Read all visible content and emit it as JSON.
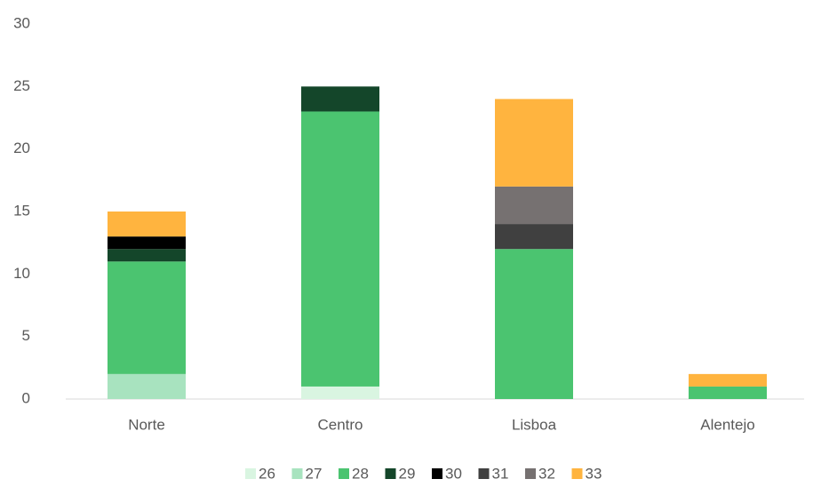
{
  "chart_data": {
    "type": "stacked_bar",
    "categories": [
      "Norte",
      "Centro",
      "Lisboa",
      "Alentejo"
    ],
    "series": [
      {
        "name": "26",
        "color": "#d9f5e1",
        "values": [
          null,
          1,
          null,
          null
        ]
      },
      {
        "name": "27",
        "color": "#a8e3bf",
        "values": [
          2,
          null,
          null,
          null
        ]
      },
      {
        "name": "28",
        "color": "#4bc470",
        "values": [
          9,
          22,
          12,
          1
        ]
      },
      {
        "name": "29",
        "color": "#14462a",
        "values": [
          1,
          2,
          null,
          null
        ]
      },
      {
        "name": "30",
        "color": "#000000",
        "values": [
          1,
          null,
          null,
          null
        ]
      },
      {
        "name": "31",
        "color": "#404040",
        "values": [
          null,
          null,
          2,
          null
        ]
      },
      {
        "name": "32",
        "color": "#767171",
        "values": [
          null,
          null,
          3,
          null
        ]
      },
      {
        "name": "33",
        "color": "#ffb43f",
        "values": [
          2,
          null,
          7,
          1
        ]
      }
    ],
    "ylim": [
      0,
      30
    ],
    "yticks": [
      0,
      5,
      10,
      15,
      20,
      25,
      30
    ],
    "grid": false,
    "legend": "bottom"
  }
}
